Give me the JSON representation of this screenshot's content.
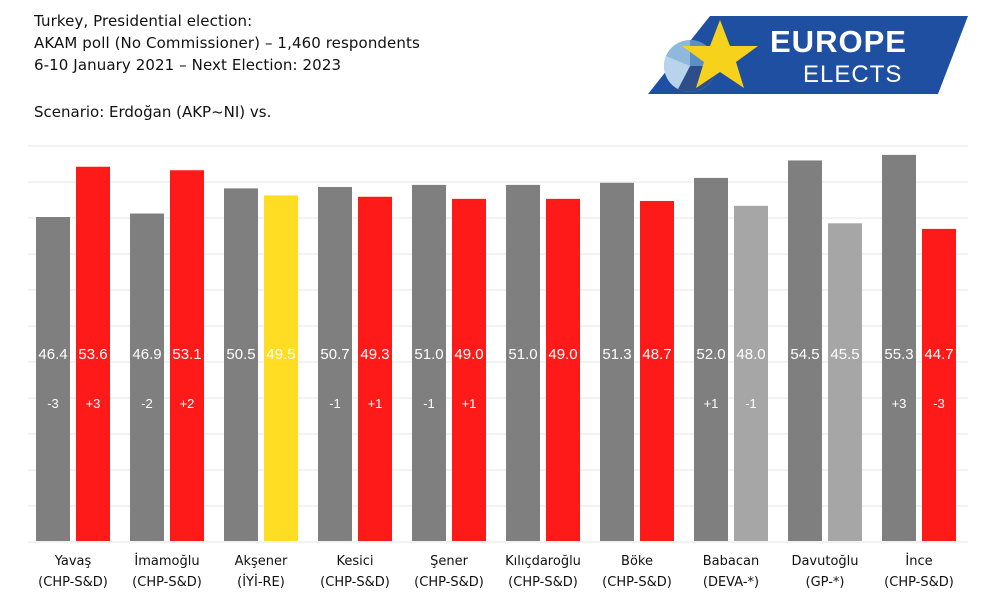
{
  "header": {
    "lines": [
      "Turkey, Presidential election:",
      "AKAM poll (No Commissioner) – 1,460 respondents",
      "6-10 January 2021 – Next Election: 2023"
    ],
    "scenario": "Scenario: Erdoğan (AKP~NI) vs."
  },
  "logo": {
    "word1": "EUROPE",
    "word2": "ELECTS",
    "bg": "#1e4fa0",
    "star": "#f7d21c"
  },
  "colors": {
    "erdogan": "#7f7f7f",
    "chp": "#ff1a1a",
    "iyi": "#ffdd22",
    "other": "#a6a6a6",
    "gridline": "#e6e6e6"
  },
  "chart_data": {
    "type": "bar",
    "categories": [
      "Yavaş",
      "İmamoğlu",
      "Akşener",
      "Kesici",
      "Şener",
      "Kılıçdaroğlu",
      "Böke",
      "Babacan",
      "Davutoğlu",
      "İnce"
    ],
    "parties": [
      "(CHP-S&D)",
      "(CHP-S&D)",
      "(İYİ-RE)",
      "(CHP-S&D)",
      "(CHP-S&D)",
      "(CHP-S&D)",
      "(CHP-S&D)",
      "(DEVA-*)",
      "(GP-*)",
      "(CHP-S&D)"
    ],
    "series": [
      {
        "values": [
          46.4,
          46.9,
          50.5,
          50.7,
          51.0,
          51.0,
          51.3,
          52.0,
          54.5,
          55.3
        ],
        "changes": [
          "-3",
          "-2",
          "",
          "-1",
          "-1",
          "",
          "",
          "+1",
          "",
          "+3"
        ],
        "colors": [
          "erdogan",
          "erdogan",
          "erdogan",
          "erdogan",
          "erdogan",
          "erdogan",
          "erdogan",
          "erdogan",
          "erdogan",
          "erdogan"
        ]
      },
      {
        "values": [
          53.6,
          53.1,
          49.5,
          49.3,
          49.0,
          49.0,
          48.7,
          48.0,
          45.5,
          44.7
        ],
        "changes": [
          "+3",
          "+2",
          "",
          "+1",
          "+1",
          "",
          "",
          "-1",
          "",
          "-3"
        ],
        "colors": [
          "chp",
          "chp",
          "iyi",
          "chp",
          "chp",
          "chp",
          "chp",
          "other",
          "other",
          "chp"
        ]
      }
    ],
    "ylim": [
      0,
      57
    ],
    "grid": true
  }
}
